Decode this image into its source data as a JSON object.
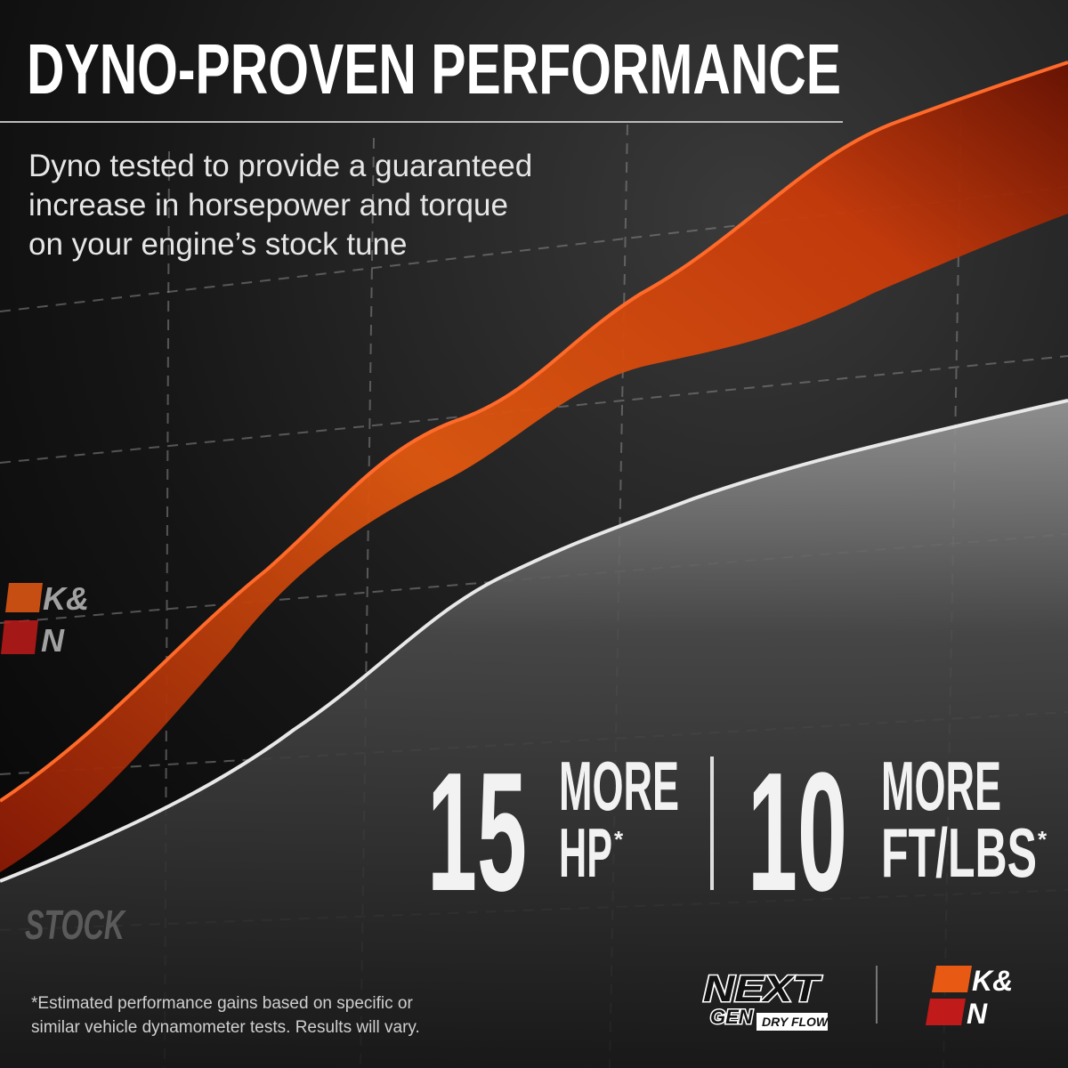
{
  "header": {
    "title": "DYNO-PROVEN PERFORMANCE",
    "subtitle_lines": [
      "Dyno tested to provide a guaranteed",
      "increase in horsepower and torque",
      "on your engine’s stock tune"
    ]
  },
  "chart_labels": {
    "stock": "STOCK"
  },
  "stats": [
    {
      "number": 15,
      "word": "MORE",
      "unit": "HP",
      "mark": "*"
    },
    {
      "number": 10,
      "word": "MORE",
      "unit": "FT/LBS",
      "mark": "*"
    }
  ],
  "footnote_lines": [
    "*Estimated performance gains based on specific or",
    "similar vehicle dynamometer tests. Results will vary."
  ],
  "logos": {
    "kn_top": "K&",
    "kn_bottom": "N",
    "nextgen_top": "NEXT",
    "nextgen_bottom": "GEN",
    "dryflow": "DRY FLOW"
  }
}
